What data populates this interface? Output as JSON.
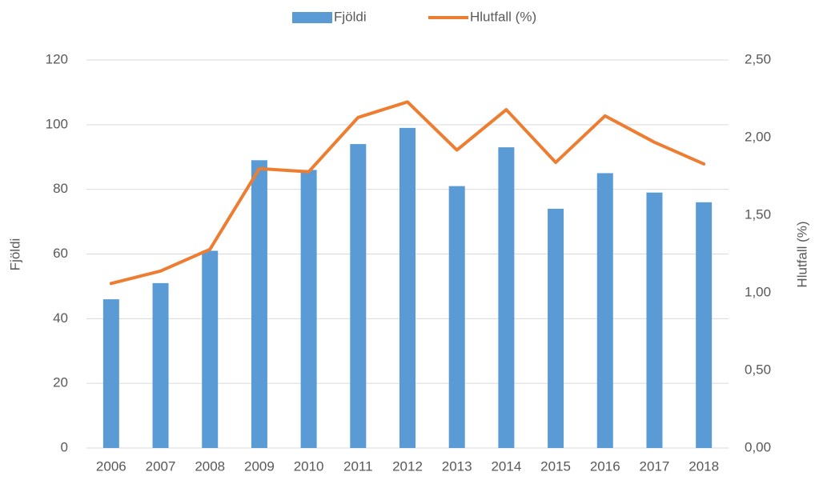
{
  "chart_data": {
    "type": "bar",
    "categories": [
      "2006",
      "2007",
      "2008",
      "2009",
      "2010",
      "2011",
      "2012",
      "2013",
      "2014",
      "2015",
      "2016",
      "2017",
      "2018"
    ],
    "series": [
      {
        "name": "Fjöldi",
        "type": "bar",
        "color": "#5b9bd5",
        "values": [
          46,
          51,
          61,
          89,
          86,
          94,
          99,
          81,
          93,
          74,
          85,
          79,
          76
        ]
      },
      {
        "name": "Hlutfall (%)",
        "type": "line",
        "axis": "y2",
        "color": "#ed7d31",
        "values": [
          1.06,
          1.14,
          1.28,
          1.8,
          1.78,
          2.13,
          2.23,
          1.92,
          2.18,
          1.84,
          2.14,
          1.97,
          1.83
        ]
      }
    ],
    "y_label": "Fjöldi",
    "y2_label": "Hlutfall (%)",
    "ylim": [
      0,
      120
    ],
    "yticks": [
      0,
      20,
      40,
      60,
      80,
      100,
      120
    ],
    "y2lim": [
      0,
      2.5
    ],
    "y2ticks": [
      {
        "value": 0,
        "label": "0,00"
      },
      {
        "value": 0.5,
        "label": "0,50"
      },
      {
        "value": 1,
        "label": "1,00"
      },
      {
        "value": 1.5,
        "label": "1,50"
      },
      {
        "value": 2,
        "label": "2,00"
      },
      {
        "value": 2.5,
        "label": "2,50"
      }
    ],
    "grid": true,
    "legend": "top"
  }
}
